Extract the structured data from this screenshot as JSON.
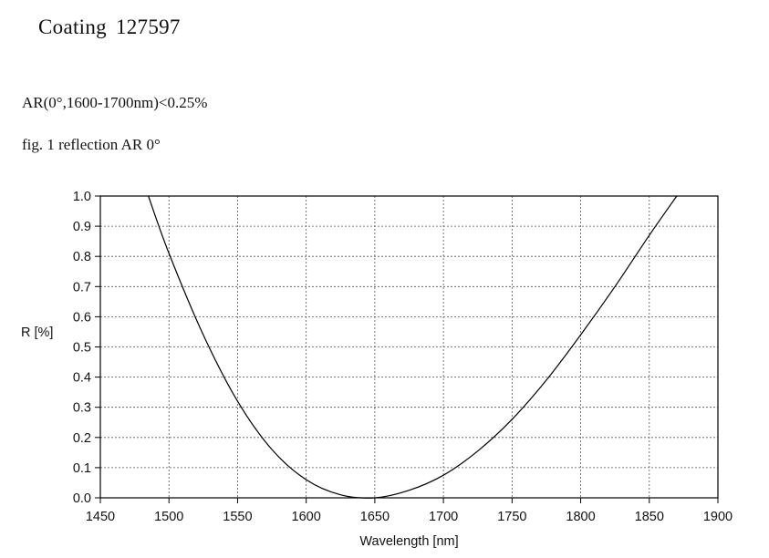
{
  "header": {
    "title": "Coating",
    "code": "127597",
    "spec": "AR(0°,1600-1700nm)<0.25%",
    "caption": "fig. 1 reflection AR  0°"
  },
  "chart_data": {
    "type": "line",
    "title": "",
    "xlabel": "Wavelength [nm]",
    "ylabel": "R [%]",
    "xlim": [
      1450,
      1900
    ],
    "ylim": [
      0,
      1.0
    ],
    "xticks": [
      1450,
      1500,
      1550,
      1600,
      1650,
      1700,
      1750,
      1800,
      1850,
      1900
    ],
    "yticks": [
      "0.0",
      "0.1",
      "0.2",
      "0.3",
      "0.4",
      "0.5",
      "0.6",
      "0.7",
      "0.8",
      "0.9",
      "1.0"
    ],
    "grid": true,
    "line_color": "#000000",
    "series": [
      {
        "x": [
          1485,
          1500,
          1525,
          1550,
          1575,
          1600,
          1625,
          1650,
          1675,
          1700,
          1725,
          1750,
          1775,
          1800,
          1825,
          1850,
          1870
        ],
        "y": [
          1.0,
          0.81,
          0.54,
          0.32,
          0.16,
          0.06,
          0.01,
          0.0,
          0.025,
          0.075,
          0.155,
          0.26,
          0.39,
          0.54,
          0.7,
          0.87,
          1.0
        ]
      }
    ]
  }
}
